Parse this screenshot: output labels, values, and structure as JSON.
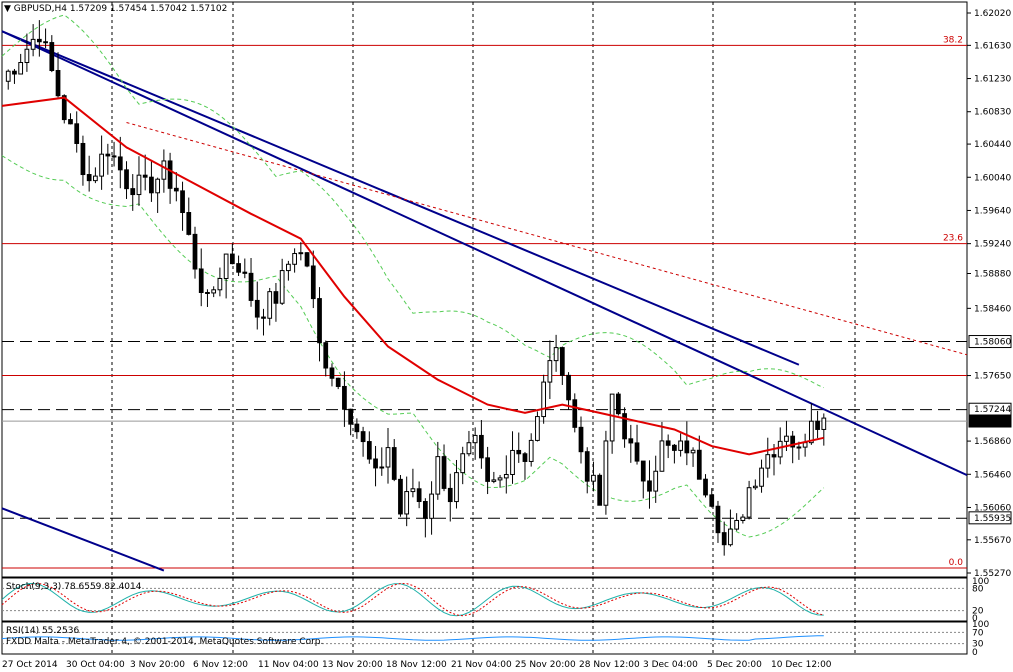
{
  "header": {
    "menu_glyph": "▼",
    "symbol": "GBPUSD,H4",
    "ohlc": "1.57209 1.57454 1.57042 1.57102"
  },
  "indicators": {
    "stoch_label": "Stoch(9,3,3) 78.6559 82.4014",
    "rsi_label": "RSI(14) 55.2536",
    "copyright": "FXDD Malta - MetaTrader 4, © 2001-2014, MetaQuotes Software Corp."
  },
  "colors": {
    "up_candle": "#ffffff",
    "down_candle": "#000000",
    "ma": "#e00000",
    "trendline": "#00008b",
    "bollinger": "#55cc55",
    "fib": "#cc0000",
    "stoch_main": "#20b2aa",
    "stoch_signal": "#e00000",
    "rsi": "#1e90ff"
  },
  "chart_data": {
    "type": "candlestick",
    "symbol": "GBPUSD",
    "timeframe": "H4",
    "ylim": [
      1.5527,
      1.6202
    ],
    "y_ticks": [
      "1.62020",
      "1.61630",
      "1.61230",
      "1.60830",
      "1.60440",
      "1.60040",
      "1.59640",
      "1.59240",
      "1.58880",
      "1.58460",
      "1.58060",
      "1.57650",
      "1.57244",
      "1.57102",
      "1.56860",
      "1.56460",
      "1.56060",
      "1.55935",
      "1.55670",
      "1.55270"
    ],
    "price_tags": [
      {
        "value": 1.5806,
        "label": "1.58060",
        "highlight": false
      },
      {
        "value": 1.57244,
        "label": "1.57244",
        "highlight": false
      },
      {
        "value": 1.57102,
        "label": "1.57102",
        "highlight": true
      },
      {
        "value": 1.55935,
        "label": "1.55935",
        "highlight": false
      }
    ],
    "x_ticks": [
      "27 Oct 2014",
      "30 Oct 04:00",
      "3 Nov 20:00",
      "6 Nov 12:00",
      "11 Nov 04:00",
      "13 Nov 20:00",
      "18 Nov 12:00",
      "21 Nov 04:00",
      "25 Nov 20:00",
      "28 Nov 12:00",
      "3 Dec 04:00",
      "5 Dec 20:00",
      "10 Dec 12:00"
    ],
    "fibonacci": [
      {
        "label": "38.2",
        "value": 1.6163
      },
      {
        "label": "23.6",
        "value": 1.5924
      },
      {
        "label": "0.0",
        "value": 1.5533
      }
    ],
    "horizontal_levels": [
      1.6163,
      1.5924,
      1.5806,
      1.5765,
      1.5724,
      1.571,
      1.5593,
      1.5533
    ],
    "close_path": [
      [
        0,
        1.612
      ],
      [
        6,
        1.618
      ],
      [
        10,
        1.608
      ],
      [
        14,
        1.6
      ],
      [
        17,
        1.604
      ],
      [
        20,
        1.6
      ],
      [
        23,
        1.599
      ],
      [
        26,
        1.601
      ],
      [
        28,
        1.599
      ],
      [
        31,
        1.59
      ],
      [
        33,
        1.585
      ],
      [
        36,
        1.591
      ],
      [
        38,
        1.59
      ],
      [
        41,
        1.584
      ],
      [
        44,
        1.586
      ],
      [
        47,
        1.592
      ],
      [
        49,
        1.59
      ],
      [
        51,
        1.58
      ],
      [
        53,
        1.577
      ],
      [
        56,
        1.572
      ],
      [
        58,
        1.568
      ],
      [
        60,
        1.564
      ],
      [
        62,
        1.568
      ],
      [
        64,
        1.56
      ],
      [
        66,
        1.563
      ],
      [
        68,
        1.56
      ],
      [
        70,
        1.566
      ],
      [
        72,
        1.562
      ],
      [
        74,
        1.566
      ],
      [
        76,
        1.568
      ],
      [
        78,
        1.563
      ],
      [
        80,
        1.564
      ],
      [
        82,
        1.568
      ],
      [
        84,
        1.567
      ],
      [
        86,
        1.571
      ],
      [
        88,
        1.579
      ],
      [
        90,
        1.578
      ],
      [
        92,
        1.57
      ],
      [
        94,
        1.565
      ],
      [
        96,
        1.561
      ],
      [
        98,
        1.574
      ],
      [
        100,
        1.57
      ],
      [
        102,
        1.565
      ],
      [
        104,
        1.564
      ],
      [
        106,
        1.568
      ],
      [
        108,
        1.567
      ],
      [
        110,
        1.568
      ],
      [
        112,
        1.565
      ],
      [
        114,
        1.562
      ],
      [
        116,
        1.556
      ],
      [
        118,
        1.558
      ],
      [
        120,
        1.563
      ],
      [
        122,
        1.566
      ],
      [
        124,
        1.568
      ],
      [
        126,
        1.57
      ],
      [
        128,
        1.567
      ],
      [
        130,
        1.572
      ],
      [
        132,
        1.571
      ]
    ],
    "ma_path": [
      [
        0,
        1.609
      ],
      [
        10,
        1.61
      ],
      [
        20,
        1.604
      ],
      [
        30,
        1.6
      ],
      [
        40,
        1.596
      ],
      [
        48,
        1.593
      ],
      [
        55,
        1.586
      ],
      [
        62,
        1.58
      ],
      [
        70,
        1.576
      ],
      [
        78,
        1.573
      ],
      [
        84,
        1.572
      ],
      [
        90,
        1.573
      ],
      [
        96,
        1.572
      ],
      [
        102,
        1.571
      ],
      [
        108,
        1.57
      ],
      [
        114,
        1.568
      ],
      [
        120,
        1.567
      ],
      [
        126,
        1.568
      ],
      [
        132,
        1.569
      ]
    ],
    "trendlines": [
      {
        "from": [
          0,
          1.618
        ],
        "to": [
          155,
          1.5645
        ]
      },
      {
        "from": [
          0,
          1.618
        ],
        "to": [
          128,
          1.5778
        ]
      },
      {
        "from": [
          0,
          1.5605
        ],
        "to": [
          26,
          1.553
        ]
      }
    ],
    "dashed_trendline": {
      "from": [
        20,
        1.607
      ],
      "to": [
        155,
        1.579
      ]
    },
    "stochastic": {
      "main": 78.6559,
      "signal": 82.4014,
      "levels": [
        80,
        20
      ],
      "scale_ticks": [
        "100",
        "80",
        "20",
        "0"
      ]
    },
    "rsi": {
      "value": 55.2536,
      "levels": [
        70,
        30
      ],
      "scale_ticks": [
        "100",
        "70",
        "30",
        "0"
      ]
    }
  }
}
